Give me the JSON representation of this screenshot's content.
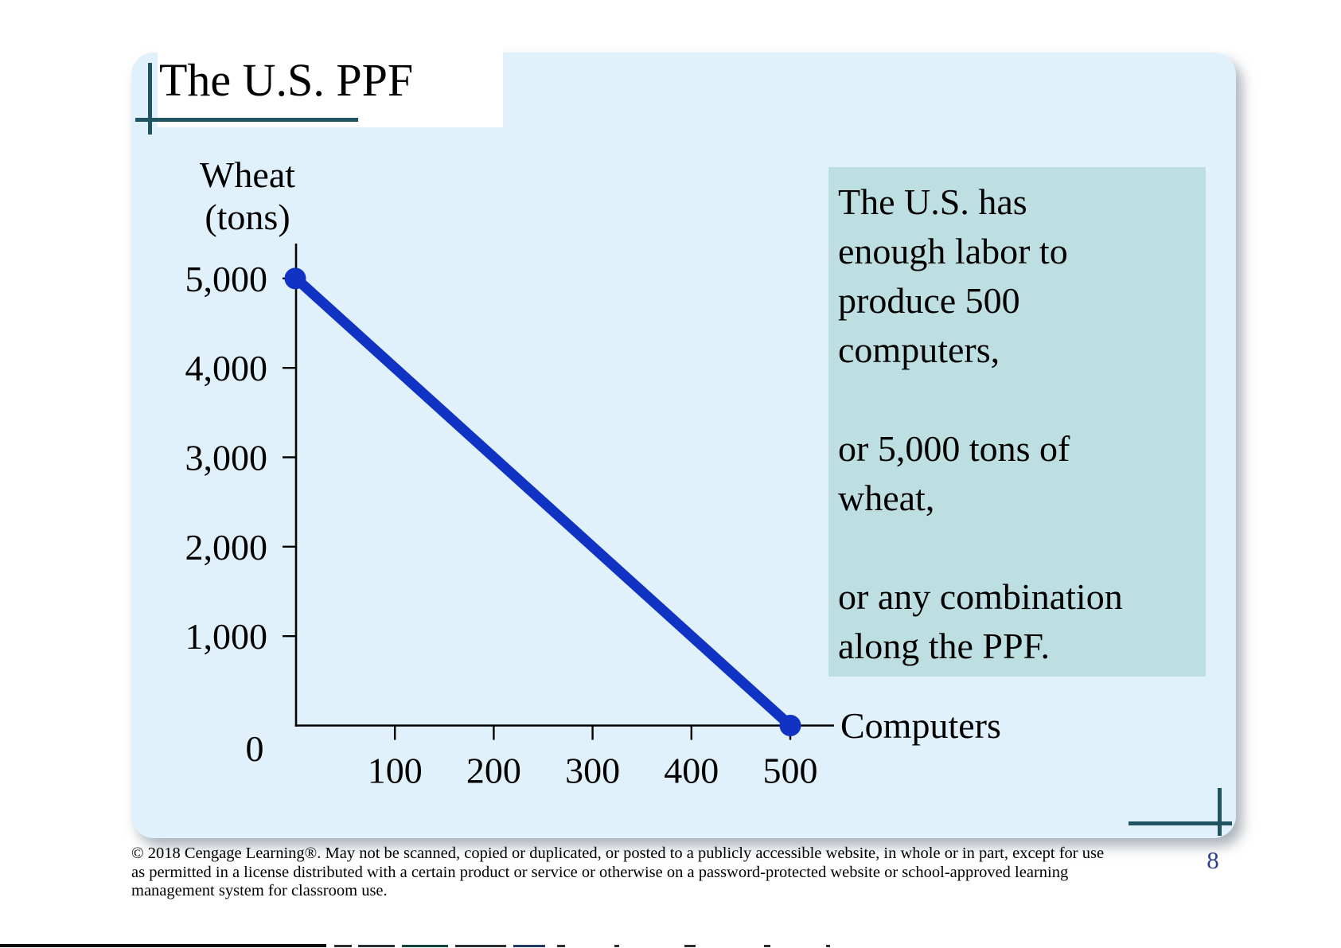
{
  "slide": {
    "title": "The U.S. PPF",
    "page_number": "8"
  },
  "colors": {
    "panel_bg": "#E0F1FB",
    "annotation_bg": "#BEDFE1",
    "ppf_line": "#1133C4",
    "accent_line": "#1F5563",
    "page_number": "#2F3D8E",
    "axis": "#000000"
  },
  "annotation_box": {
    "paragraphs": [
      [
        "The U.S. has",
        "enough labor to",
        "produce 500",
        "computers,"
      ],
      [
        "or 5,000 tons of",
        "wheat,"
      ],
      [
        "or any combination",
        "along the PPF."
      ]
    ]
  },
  "chart_data": {
    "type": "line",
    "title": "The U.S. PPF",
    "xlabel": "Computers",
    "ylabel_lines": [
      "Wheat",
      "(tons)"
    ],
    "origin_label": "0",
    "xlim": [
      0,
      544
    ],
    "ylim": [
      0,
      5400
    ],
    "grid": false,
    "x_ticks": [
      {
        "value": 100,
        "label": "100"
      },
      {
        "value": 200,
        "label": "200"
      },
      {
        "value": 300,
        "label": "300"
      },
      {
        "value": 400,
        "label": "400"
      },
      {
        "value": 500,
        "label": "500"
      }
    ],
    "y_ticks": [
      {
        "value": 1000,
        "label": "1,000"
      },
      {
        "value": 2000,
        "label": "2,000"
      },
      {
        "value": 3000,
        "label": "3,000"
      },
      {
        "value": 4000,
        "label": "4,000"
      },
      {
        "value": 5000,
        "label": "5,000"
      }
    ],
    "series": [
      {
        "name": "U.S. PPF",
        "color": "#1133C4",
        "points": [
          {
            "computers": 0,
            "wheat": 5000
          },
          {
            "computers": 500,
            "wheat": 0
          }
        ],
        "endpoint_markers": true
      }
    ]
  },
  "copyright": {
    "lines": [
      "© 2018 Cengage Learning®. May not be scanned, copied or duplicated, or posted to a publicly accessible website, in whole or in part, except for use",
      "as permitted in a license distributed with a certain product or service or otherwise on a password-protected website or school-approved learning",
      "management system for classroom use."
    ]
  }
}
